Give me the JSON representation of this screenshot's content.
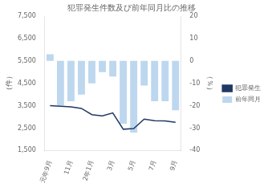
{
  "chart_data": {
    "type": "bar",
    "title": "犯罪発生件数及び前年同月比の推移",
    "categories": [
      "元年9月",
      null,
      "11月",
      null,
      "2年1月",
      null,
      "3月",
      null,
      "5月",
      null,
      "7月",
      null,
      "9月"
    ],
    "series": [
      {
        "name": "犯罪発生件数",
        "type": "line",
        "color": "#1f3864",
        "axis": "y",
        "values": [
          3500,
          3480,
          3450,
          3380,
          3100,
          3050,
          3180,
          2450,
          2480,
          2900,
          2830,
          2820,
          2760
        ]
      },
      {
        "name": "前年同月比",
        "type": "bar",
        "color": "#bdd7ee",
        "axis": "y2",
        "values": [
          3,
          -20,
          -18,
          -15,
          -10,
          -5,
          -7,
          -28,
          -32,
          -11,
          -18,
          -18,
          -22
        ]
      }
    ],
    "ylabel": "（件）",
    "y2label": "（％）",
    "ylim": [
      1500,
      7500
    ],
    "yticks": [
      {
        "value": 1500,
        "label": "1,500"
      },
      {
        "value": 2500,
        "label": "2,500"
      },
      {
        "value": 3500,
        "label": "3,500"
      },
      {
        "value": 4500,
        "label": "4,500"
      },
      {
        "value": 5500,
        "label": "5,500"
      },
      {
        "value": 6500,
        "label": "6,500"
      },
      {
        "value": 7500,
        "label": "7,500"
      }
    ],
    "y2lim": [
      -40,
      20
    ],
    "y2ticks": [
      -40,
      -30,
      -20,
      -10,
      0,
      10,
      20
    ],
    "grid": false,
    "legend": "right"
  }
}
